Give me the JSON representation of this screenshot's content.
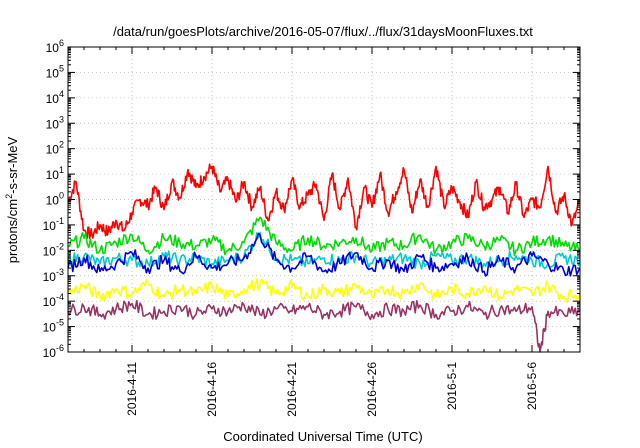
{
  "chart_data": {
    "type": "line",
    "title": "/data/run/goesPlots/archive/2016-05-07/flux/../flux/31daysMoonFluxes.txt",
    "xlabel": "Coordinated Universal Time (UTC)",
    "ylabel": {
      "pre": "protons/cm",
      "sup": "2",
      "post": "-s-sr-MeV"
    },
    "yscale": "log",
    "ylim": [
      1e-06,
      1000000.0
    ],
    "xlim": [
      "2016-04-07",
      "2016-05-09"
    ],
    "y_ticks": [
      {
        "value": 1e-06,
        "base": "10",
        "exp": "-6"
      },
      {
        "value": 1e-05,
        "base": "10",
        "exp": "-5"
      },
      {
        "value": 0.0001,
        "base": "10",
        "exp": "-4"
      },
      {
        "value": 0.001,
        "base": "10",
        "exp": "-3"
      },
      {
        "value": 0.01,
        "base": "10",
        "exp": "-2"
      },
      {
        "value": 0.1,
        "base": "10",
        "exp": "-1"
      },
      {
        "value": 1,
        "base": "10",
        "exp": "0"
      },
      {
        "value": 10,
        "base": "10",
        "exp": "1"
      },
      {
        "value": 100,
        "base": "10",
        "exp": "2"
      },
      {
        "value": 1000,
        "base": "10",
        "exp": "3"
      },
      {
        "value": 10000,
        "base": "10",
        "exp": "4"
      },
      {
        "value": 100000,
        "base": "10",
        "exp": "5"
      },
      {
        "value": 1000000,
        "base": "10",
        "exp": "6"
      }
    ],
    "x_ticks": [
      {
        "date": "2016-04-11",
        "label": "2016-4-11"
      },
      {
        "date": "2016-04-16",
        "label": "2016-4-16"
      },
      {
        "date": "2016-04-21",
        "label": "2016-4-21"
      },
      {
        "date": "2016-04-26",
        "label": "2016-4-26"
      },
      {
        "date": "2016-05-01",
        "label": "2016-5-1"
      },
      {
        "date": "2016-05-06",
        "label": "2016-5-6"
      }
    ],
    "grid": true,
    "series": [
      {
        "color": "#ff0000",
        "x": [
          "2016-04-07",
          "2016-04-07T12:00",
          "2016-04-08",
          "2016-04-08T12:00",
          "2016-04-09",
          "2016-04-09T12:00",
          "2016-04-10",
          "2016-04-10T12:00",
          "2016-04-11",
          "2016-04-11T12:00",
          "2016-04-12",
          "2016-04-12T12:00",
          "2016-04-13",
          "2016-04-13T12:00",
          "2016-04-14",
          "2016-04-14T12:00",
          "2016-04-15",
          "2016-04-15T12:00",
          "2016-04-16",
          "2016-04-16T12:00",
          "2016-04-17",
          "2016-04-17T12:00",
          "2016-04-18",
          "2016-04-18T12:00",
          "2016-04-19",
          "2016-04-19T12:00",
          "2016-04-20",
          "2016-04-20T12:00",
          "2016-04-21",
          "2016-04-21T12:00",
          "2016-04-22",
          "2016-04-22T12:00",
          "2016-04-23",
          "2016-04-23T12:00",
          "2016-04-24",
          "2016-04-24T12:00",
          "2016-04-25",
          "2016-04-25T12:00",
          "2016-04-26",
          "2016-04-26T12:00",
          "2016-04-27",
          "2016-04-27T12:00",
          "2016-04-28",
          "2016-04-28T12:00",
          "2016-04-29",
          "2016-04-29T12:00",
          "2016-04-30",
          "2016-04-30T12:00",
          "2016-05-01",
          "2016-05-01T12:00",
          "2016-05-02",
          "2016-05-02T12:00",
          "2016-05-03",
          "2016-05-03T12:00",
          "2016-05-04",
          "2016-05-04T12:00",
          "2016-05-05",
          "2016-05-05T12:00",
          "2016-05-06",
          "2016-05-06T12:00",
          "2016-05-07",
          "2016-05-07T12:00",
          "2016-05-08",
          "2016-05-08T12:00",
          "2016-05-09"
        ],
        "values": [
          0.8,
          5,
          0.06,
          0.04,
          0.1,
          0.05,
          0.15,
          0.06,
          0.3,
          1,
          0.6,
          3,
          0.4,
          5,
          1.2,
          15,
          3,
          8,
          20,
          2,
          6,
          0.8,
          5,
          0.5,
          3,
          0.15,
          2,
          0.4,
          6,
          0.5,
          1.5,
          4,
          0.15,
          10,
          0.4,
          7,
          0.08,
          3,
          0.5,
          10,
          0.3,
          2,
          15,
          0.3,
          6,
          0.5,
          20,
          0.5,
          3,
          0.8,
          0.2,
          5,
          0.5,
          1,
          3,
          0.3,
          4,
          0.2,
          1,
          0.5,
          20,
          0.3,
          1.5,
          0.1,
          0.8
        ]
      },
      {
        "color": "#00dd00",
        "x": [
          "2016-04-07",
          "2016-04-08",
          "2016-04-09",
          "2016-04-10",
          "2016-04-11",
          "2016-04-12",
          "2016-04-13",
          "2016-04-14",
          "2016-04-15",
          "2016-04-16",
          "2016-04-17",
          "2016-04-18",
          "2016-04-19",
          "2016-04-20",
          "2016-04-21",
          "2016-04-22",
          "2016-04-23",
          "2016-04-24",
          "2016-04-25",
          "2016-04-26",
          "2016-04-27",
          "2016-04-28",
          "2016-04-29",
          "2016-04-30",
          "2016-05-01",
          "2016-05-02",
          "2016-05-03",
          "2016-05-04",
          "2016-05-05",
          "2016-05-06",
          "2016-05-07",
          "2016-05-08",
          "2016-05-09"
        ],
        "values": [
          0.015,
          0.03,
          0.01,
          0.02,
          0.04,
          0.01,
          0.03,
          0.02,
          0.015,
          0.025,
          0.01,
          0.02,
          0.2,
          0.02,
          0.01,
          0.03,
          0.015,
          0.02,
          0.03,
          0.01,
          0.02,
          0.015,
          0.04,
          0.01,
          0.02,
          0.03,
          0.015,
          0.025,
          0.01,
          0.02,
          0.03,
          0.015,
          0.01
        ]
      },
      {
        "color": "#00cccc",
        "x": [
          "2016-04-07",
          "2016-04-08",
          "2016-04-09",
          "2016-04-10",
          "2016-04-11",
          "2016-04-12",
          "2016-04-13",
          "2016-04-14",
          "2016-04-15",
          "2016-04-16",
          "2016-04-17",
          "2016-04-18",
          "2016-04-19",
          "2016-04-20",
          "2016-04-21",
          "2016-04-22",
          "2016-04-23",
          "2016-04-24",
          "2016-04-25",
          "2016-04-26",
          "2016-04-27",
          "2016-04-28",
          "2016-04-29",
          "2016-04-30",
          "2016-05-01",
          "2016-05-02",
          "2016-05-03",
          "2016-05-04",
          "2016-05-05",
          "2016-05-06",
          "2016-05-07",
          "2016-05-08",
          "2016-05-09"
        ],
        "values": [
          0.004,
          0.006,
          0.003,
          0.005,
          0.004,
          0.003,
          0.006,
          0.004,
          0.005,
          0.003,
          0.004,
          0.006,
          0.05,
          0.005,
          0.004,
          0.003,
          0.005,
          0.004,
          0.006,
          0.003,
          0.004,
          0.005,
          0.003,
          0.006,
          0.004,
          0.005,
          0.003,
          0.004,
          0.006,
          0.004,
          0.003,
          0.005,
          0.004
        ]
      },
      {
        "color": "#0000dd",
        "x": [
          "2016-04-07",
          "2016-04-08",
          "2016-04-09",
          "2016-04-10",
          "2016-04-11",
          "2016-04-12",
          "2016-04-13",
          "2016-04-14",
          "2016-04-15",
          "2016-04-16",
          "2016-04-17",
          "2016-04-18",
          "2016-04-19",
          "2016-04-20",
          "2016-04-21",
          "2016-04-22",
          "2016-04-23",
          "2016-04-24",
          "2016-04-25",
          "2016-04-26",
          "2016-04-27",
          "2016-04-28",
          "2016-04-29",
          "2016-04-30",
          "2016-05-01",
          "2016-05-02",
          "2016-05-03",
          "2016-05-04",
          "2016-05-05",
          "2016-05-06",
          "2016-05-07",
          "2016-05-08",
          "2016-05-09"
        ],
        "values": [
          0.002,
          0.005,
          0.0015,
          0.003,
          0.008,
          0.002,
          0.004,
          0.0015,
          0.006,
          0.002,
          0.003,
          0.005,
          0.04,
          0.004,
          0.002,
          0.006,
          0.0015,
          0.003,
          0.008,
          0.002,
          0.004,
          0.0015,
          0.006,
          0.002,
          0.003,
          0.005,
          0.0015,
          0.004,
          0.002,
          0.006,
          0.003,
          0.0015,
          0.002
        ]
      },
      {
        "color": "#ffff00",
        "x": [
          "2016-04-07",
          "2016-04-08",
          "2016-04-09",
          "2016-04-10",
          "2016-04-11",
          "2016-04-12",
          "2016-04-13",
          "2016-04-14",
          "2016-04-15",
          "2016-04-16",
          "2016-04-17",
          "2016-04-18",
          "2016-04-19",
          "2016-04-20",
          "2016-04-21",
          "2016-04-22",
          "2016-04-23",
          "2016-04-24",
          "2016-04-25",
          "2016-04-26",
          "2016-04-27",
          "2016-04-28",
          "2016-04-29",
          "2016-04-30",
          "2016-05-01",
          "2016-05-02",
          "2016-05-03",
          "2016-05-04",
          "2016-05-05",
          "2016-05-06",
          "2016-05-07",
          "2016-05-08",
          "2016-05-09"
        ],
        "values": [
          0.0002,
          0.0004,
          0.00015,
          0.0003,
          0.0002,
          0.0005,
          0.00015,
          0.0003,
          0.0002,
          0.0004,
          0.00015,
          0.0003,
          0.0005,
          0.0002,
          0.0004,
          0.00015,
          0.0003,
          0.0002,
          0.0004,
          0.00015,
          0.0003,
          0.0002,
          0.0005,
          0.00015,
          0.0003,
          0.0002,
          0.0004,
          0.00015,
          0.0003,
          0.0002,
          0.0004,
          0.00015,
          0.0002
        ]
      },
      {
        "color": "#993366",
        "x": [
          "2016-04-07",
          "2016-04-08",
          "2016-04-09",
          "2016-04-10",
          "2016-04-11",
          "2016-04-12",
          "2016-04-13",
          "2016-04-14",
          "2016-04-15",
          "2016-04-16",
          "2016-04-17",
          "2016-04-18",
          "2016-04-19",
          "2016-04-20",
          "2016-04-21",
          "2016-04-22",
          "2016-04-23",
          "2016-04-24",
          "2016-04-25",
          "2016-04-26",
          "2016-04-27",
          "2016-04-28",
          "2016-04-29",
          "2016-04-30",
          "2016-05-01",
          "2016-05-02",
          "2016-05-03",
          "2016-05-04",
          "2016-05-05",
          "2016-05-06",
          "2016-05-06T12:00",
          "2016-05-07",
          "2016-05-08",
          "2016-05-09"
        ],
        "values": [
          4e-05,
          6e-05,
          3e-05,
          5e-05,
          8e-05,
          3e-05,
          4e-05,
          6e-05,
          3e-05,
          5e-05,
          4e-05,
          7e-05,
          3e-05,
          5e-05,
          4e-05,
          6e-05,
          3e-05,
          4e-05,
          6e-05,
          3e-05,
          5e-05,
          4e-05,
          7e-05,
          3e-05,
          4e-05,
          6e-05,
          3e-05,
          5e-05,
          4e-05,
          6e-05,
          1e-06,
          4e-05,
          3e-05,
          4e-05
        ]
      }
    ]
  }
}
